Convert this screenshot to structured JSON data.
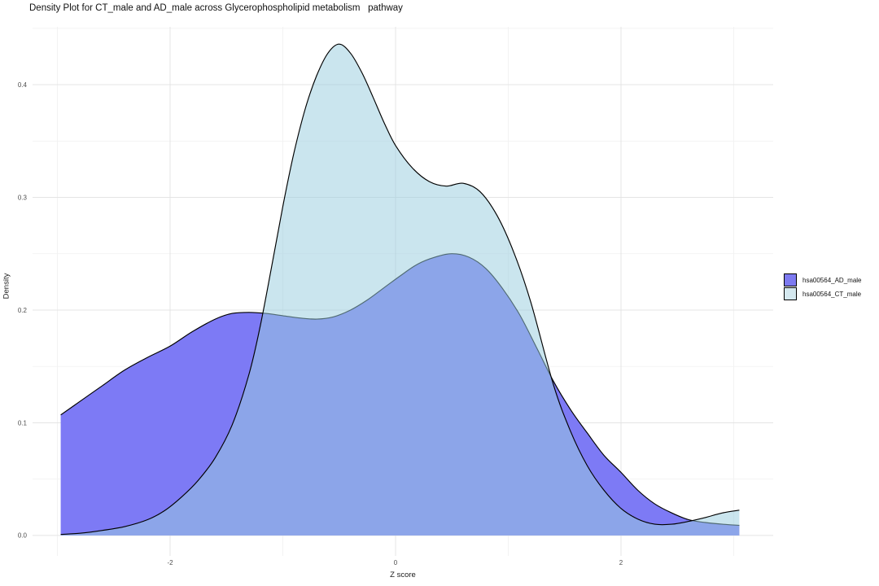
{
  "chart_data": {
    "type": "area",
    "subtype": "overlapping-density-curves",
    "title": "Density Plot for CT_male and AD_male across Glycerophospholipid metabolism   pathway",
    "xlabel": "Z score",
    "ylabel": "Density",
    "xlim": [
      -3.22,
      3.35
    ],
    "ylim": [
      -0.0181,
      0.4513
    ],
    "grid": true,
    "legend_position": "right",
    "x_ticks": {
      "values": [
        -2,
        0,
        2
      ],
      "labels": [
        "-2",
        "0",
        "2"
      ],
      "minor": [
        -3,
        -1,
        1,
        3
      ]
    },
    "y_ticks": {
      "values": [
        0,
        0.1,
        0.2,
        0.3,
        0.4
      ],
      "labels": [
        "0.0",
        "0.1",
        "0.2",
        "0.3",
        "0.4"
      ],
      "minor": [
        0.05,
        0.15,
        0.25,
        0.35,
        0.45
      ]
    },
    "grid_major_color": "#e4e4e4",
    "grid_minor_color": "#f2f2f2",
    "series": [
      {
        "name": "hsa00564_AD_male",
        "fill": "#7d7af5",
        "fill_opacity": 1,
        "stroke": "#000000",
        "points": [
          [
            -2.97,
            0.107
          ],
          [
            -2.8,
            0.119
          ],
          [
            -2.6,
            0.133
          ],
          [
            -2.4,
            0.147
          ],
          [
            -2.2,
            0.158
          ],
          [
            -2.0,
            0.168
          ],
          [
            -1.8,
            0.181
          ],
          [
            -1.6,
            0.192
          ],
          [
            -1.45,
            0.197
          ],
          [
            -1.3,
            0.198
          ],
          [
            -1.15,
            0.197
          ],
          [
            -1.0,
            0.195
          ],
          [
            -0.85,
            0.193
          ],
          [
            -0.7,
            0.192
          ],
          [
            -0.55,
            0.194
          ],
          [
            -0.4,
            0.2
          ],
          [
            -0.25,
            0.209
          ],
          [
            -0.1,
            0.22
          ],
          [
            0.05,
            0.231
          ],
          [
            0.2,
            0.241
          ],
          [
            0.35,
            0.247
          ],
          [
            0.5,
            0.25
          ],
          [
            0.65,
            0.247
          ],
          [
            0.8,
            0.237
          ],
          [
            0.95,
            0.219
          ],
          [
            1.1,
            0.196
          ],
          [
            1.25,
            0.167
          ],
          [
            1.4,
            0.137
          ],
          [
            1.55,
            0.112
          ],
          [
            1.7,
            0.091
          ],
          [
            1.85,
            0.071
          ],
          [
            2.0,
            0.056
          ],
          [
            2.15,
            0.04
          ],
          [
            2.3,
            0.028
          ],
          [
            2.45,
            0.02
          ],
          [
            2.6,
            0.014
          ],
          [
            2.75,
            0.0115
          ],
          [
            2.9,
            0.01
          ],
          [
            3.05,
            0.009
          ]
        ]
      },
      {
        "name": "hsa00564_CT_male",
        "fill": "#9acddf",
        "fill_opacity": 0.52,
        "stroke": "#000000",
        "points": [
          [
            -2.97,
            0.001
          ],
          [
            -2.8,
            0.002
          ],
          [
            -2.6,
            0.0045
          ],
          [
            -2.4,
            0.008
          ],
          [
            -2.2,
            0.014
          ],
          [
            -2.05,
            0.022
          ],
          [
            -1.9,
            0.034
          ],
          [
            -1.75,
            0.049
          ],
          [
            -1.6,
            0.069
          ],
          [
            -1.45,
            0.098
          ],
          [
            -1.3,
            0.143
          ],
          [
            -1.2,
            0.186
          ],
          [
            -1.1,
            0.238
          ],
          [
            -1.0,
            0.292
          ],
          [
            -0.9,
            0.34
          ],
          [
            -0.8,
            0.379
          ],
          [
            -0.7,
            0.408
          ],
          [
            -0.6,
            0.428
          ],
          [
            -0.5,
            0.436
          ],
          [
            -0.4,
            0.428
          ],
          [
            -0.3,
            0.411
          ],
          [
            -0.2,
            0.389
          ],
          [
            -0.1,
            0.366
          ],
          [
            0.0,
            0.346
          ],
          [
            0.15,
            0.326
          ],
          [
            0.3,
            0.314
          ],
          [
            0.45,
            0.31
          ],
          [
            0.6,
            0.3125
          ],
          [
            0.75,
            0.305
          ],
          [
            0.9,
            0.284
          ],
          [
            1.05,
            0.251
          ],
          [
            1.2,
            0.207
          ],
          [
            1.4,
            0.134
          ],
          [
            1.55,
            0.093
          ],
          [
            1.7,
            0.062
          ],
          [
            1.85,
            0.04
          ],
          [
            2.0,
            0.024
          ],
          [
            2.15,
            0.0145
          ],
          [
            2.3,
            0.01
          ],
          [
            2.45,
            0.01
          ],
          [
            2.6,
            0.0125
          ],
          [
            2.75,
            0.016
          ],
          [
            2.9,
            0.02
          ],
          [
            3.05,
            0.0225
          ]
        ]
      }
    ]
  },
  "legend": {
    "items": [
      {
        "label": "hsa00564_AD_male",
        "color": "#7d7af0"
      },
      {
        "label": "hsa00564_CT_male",
        "color": "#d4e8ef"
      }
    ]
  }
}
